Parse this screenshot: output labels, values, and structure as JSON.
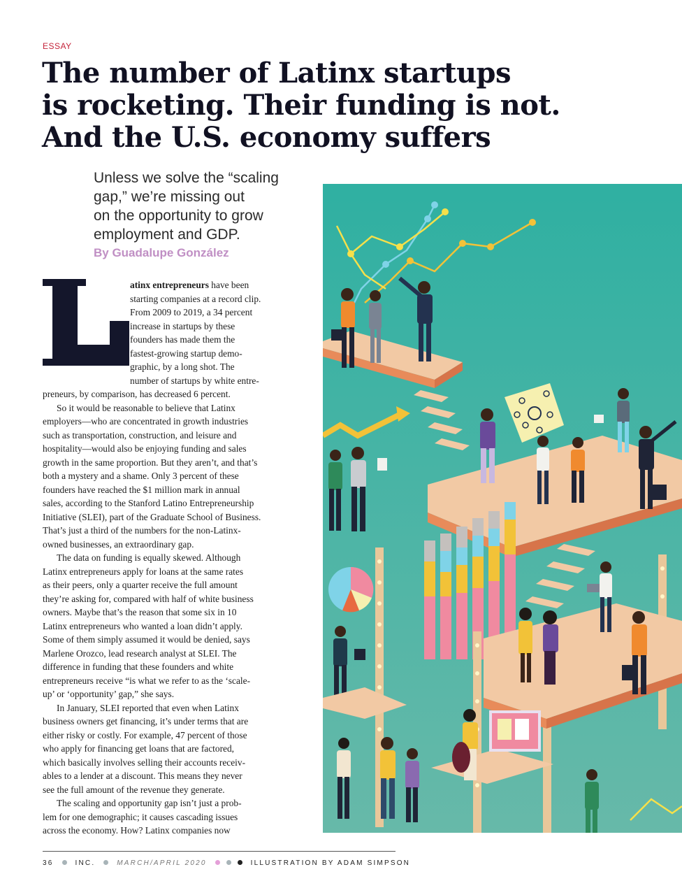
{
  "kicker": "ESSAY",
  "headline": {
    "line1": "The number of Latinx startups",
    "line2": "is rocketing. Their funding is not.",
    "line3": "And the U.S. economy suffers"
  },
  "dek": {
    "line1": "Unless we solve the “scaling",
    "line2": "gap,” we’re missing out",
    "line3": "on the opportunity to grow",
    "line4": "employment and GDP."
  },
  "byline": "By Guadalupe González",
  "dropcap": "L",
  "body": {
    "lead": "atinx entrepreneurs",
    "l1": " have been",
    "l2": "starting companies at a record clip.",
    "l3": "From 2009 to 2019, a 34 percent",
    "l4": "increase in startups by these",
    "l5": "founders has made them the",
    "l6": "fastest-growing startup demo-",
    "l7": "graphic, by a long shot. The",
    "l8": "number of startups by white entre-",
    "l9": "preneurs, by comparison, has decreased 6 percent.",
    "l10": "So it would be reasonable to believe that Latinx",
    "l11": "employers—who are concentrated in growth industries",
    "l12": "such as transportation, construction, and leisure and",
    "l13": "hospitality—would also be enjoying funding and sales",
    "l14": "growth in the same proportion. But they aren’t, and that’s",
    "l15": "both a mystery and a shame. Only 3 percent of these",
    "l16": "founders have reached the $1 million mark in annual",
    "l17": "sales, according to the Stanford Latino Entrepreneurship",
    "l18": "Initiative (SLEI), part of the Graduate School of Business.",
    "l19": "That’s just a third of the numbers for the non-Latinx-",
    "l20": "owned businesses, an extraordinary gap.",
    "l21": "The data on funding is equally skewed. Although",
    "l22": "Latinx entrepreneurs apply for loans at the same rates",
    "l23": "as their peers, only a quarter receive the full amount",
    "l24": "they’re asking for, compared with half of white business",
    "l25": "owners. Maybe that’s the reason that some six in 10",
    "l26": "Latinx entrepreneurs who wanted a loan didn’t apply.",
    "l27": "Some of them simply assumed it would be denied, says",
    "l28": "Marlene Orozco, lead research analyst at SLEI. The",
    "l29": "difference in funding that these founders and white",
    "l30": "entrepreneurs receive “is what we refer to as the ‘scale-",
    "l31": "up’ or ‘opportunity’ gap,” she says.",
    "l32": "In January, SLEI reported that even when Latinx",
    "l33": "business owners get financing, it’s under terms that are",
    "l34": "either risky or costly. For example, 47 percent of those",
    "l35": "who apply for financing get loans that are factored,",
    "l36": "which basically involves selling their accounts receiv-",
    "l37": "ables to a lender at a discount. This means they never",
    "l38": "see the full amount of the revenue they generate.",
    "l39": "The scaling and opportunity gap isn’t just a prob-",
    "l40": "lem for one demographic; it causes cascading issues",
    "l41": "across the economy. How? Latinx companies now"
  },
  "footer": {
    "page": "36",
    "magazine": "INC.",
    "issue": "MARCH/APRIL 2020",
    "credit": "ILLUSTRATION BY ADAM SIMPSON"
  },
  "colors": {
    "kicker": "#c4233a",
    "byline": "#c08fc4",
    "illustration_background": "#2aa89e",
    "platform": "#f2c9a4"
  }
}
